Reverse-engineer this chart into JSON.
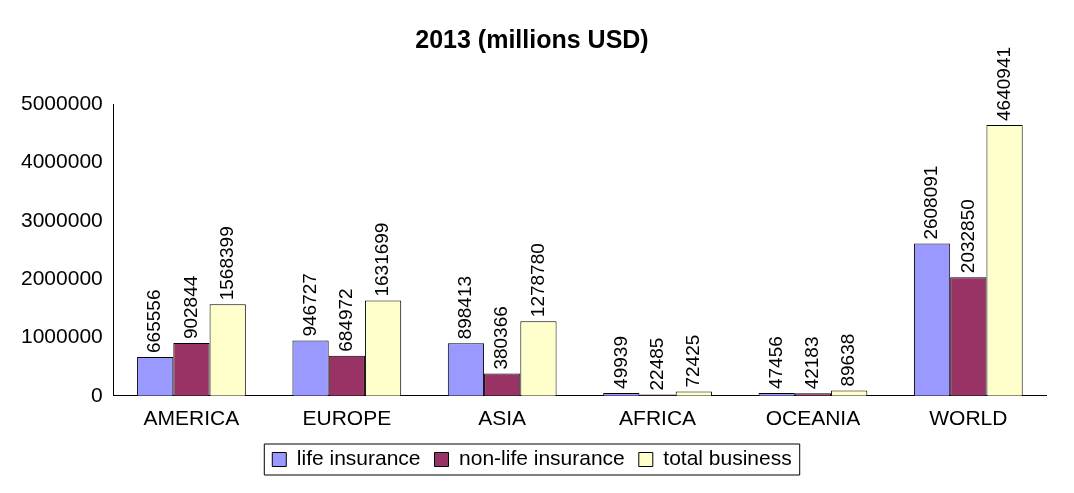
{
  "chart_data": {
    "type": "bar",
    "title": "2013 (millions USD)",
    "categories": [
      "AMERICA",
      "EUROPE",
      "ASIA",
      "AFRICA",
      "OCEANIA",
      "WORLD"
    ],
    "series": [
      {
        "name": "life insurance",
        "color": "#9999ff",
        "values": [
          665556,
          946727,
          898413,
          49939,
          47456,
          2608091
        ]
      },
      {
        "name": "non-life insurance",
        "color": "#993366",
        "values": [
          902844,
          684972,
          380366,
          22485,
          42183,
          2032850
        ]
      },
      {
        "name": "total business",
        "color": "#ffffcc",
        "values": [
          1568399,
          1631699,
          1278780,
          72425,
          89638,
          4640941
        ]
      }
    ],
    "ylim": [
      0,
      5000000
    ],
    "yticks": [
      0,
      1000000,
      2000000,
      3000000,
      4000000,
      5000000
    ],
    "grid": false,
    "legend": "bottom",
    "data_labels": true
  }
}
